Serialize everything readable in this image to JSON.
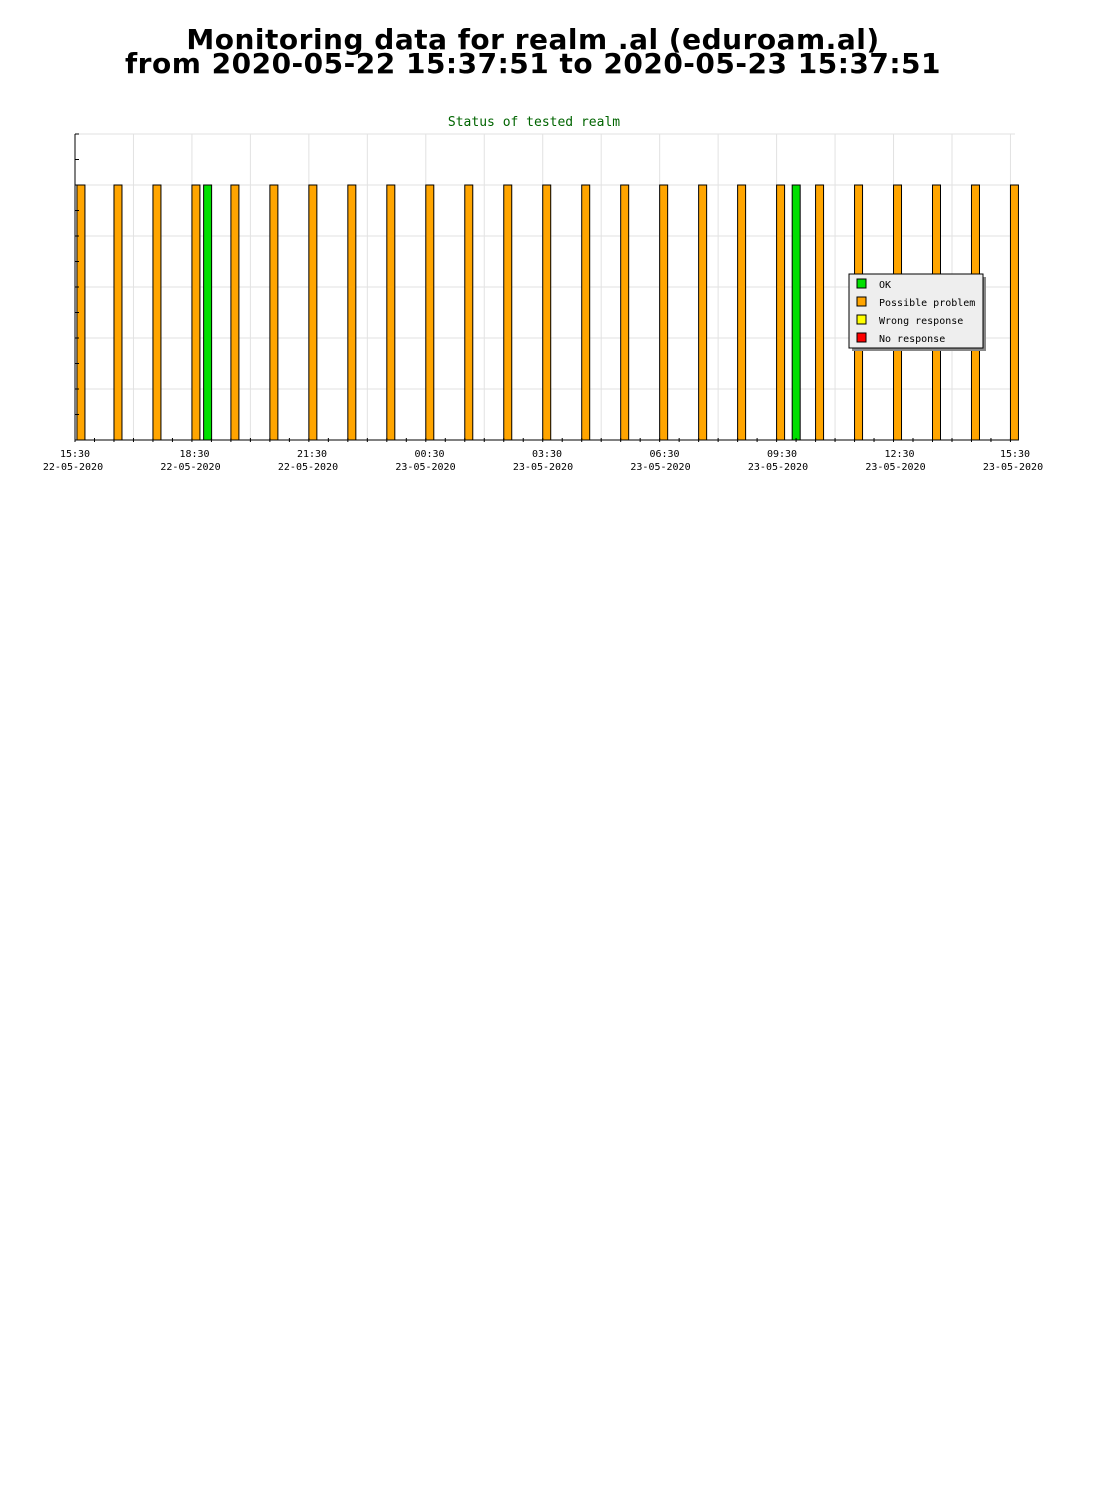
{
  "header": {
    "title_line1": "Monitoring data for realm .al  (eduroam.al)",
    "title_line2": "from 2020-05-22 15:37:51 to 2020-05-23 15:37:51"
  },
  "chart_data": {
    "type": "bar",
    "title": "Status of tested realm",
    "xlabel": "",
    "ylabel": "",
    "x_range": [
      "2020-05-22 15:30",
      "2020-05-23 15:37"
    ],
    "grid": true,
    "legend_position": "right",
    "ticks": [
      {
        "time": "15:30",
        "date": "22-05-2020"
      },
      {
        "time": "18:30",
        "date": "22-05-2020"
      },
      {
        "time": "21:30",
        "date": "22-05-2020"
      },
      {
        "time": "00:30",
        "date": "23-05-2020"
      },
      {
        "time": "03:30",
        "date": "23-05-2020"
      },
      {
        "time": "06:30",
        "date": "23-05-2020"
      },
      {
        "time": "09:30",
        "date": "23-05-2020"
      },
      {
        "time": "12:30",
        "date": "23-05-2020"
      },
      {
        "time": "15:30",
        "date": "23-05-2020"
      }
    ],
    "legend": [
      {
        "status": "ok",
        "label": "OK",
        "color": "#00e000"
      },
      {
        "status": "possible",
        "label": "Possible problem",
        "color": "#ffa500"
      },
      {
        "status": "wrong",
        "label": "Wrong response",
        "color": "#ffff00"
      },
      {
        "status": "none",
        "label": "No response",
        "color": "#ff0000"
      }
    ],
    "tests": [
      {
        "time": "2020-05-22 15:33",
        "status": "possible"
      },
      {
        "time": "2020-05-22 16:30",
        "status": "possible"
      },
      {
        "time": "2020-05-22 17:30",
        "status": "possible"
      },
      {
        "time": "2020-05-22 18:30",
        "status": "possible"
      },
      {
        "time": "2020-05-22 18:48",
        "status": "ok"
      },
      {
        "time": "2020-05-22 19:30",
        "status": "possible"
      },
      {
        "time": "2020-05-22 20:30",
        "status": "possible"
      },
      {
        "time": "2020-05-22 21:30",
        "status": "possible"
      },
      {
        "time": "2020-05-22 22:30",
        "status": "possible"
      },
      {
        "time": "2020-05-22 23:30",
        "status": "possible"
      },
      {
        "time": "2020-05-23 00:30",
        "status": "possible"
      },
      {
        "time": "2020-05-23 01:30",
        "status": "possible"
      },
      {
        "time": "2020-05-23 02:30",
        "status": "possible"
      },
      {
        "time": "2020-05-23 03:30",
        "status": "possible"
      },
      {
        "time": "2020-05-23 04:30",
        "status": "possible"
      },
      {
        "time": "2020-05-23 05:30",
        "status": "possible"
      },
      {
        "time": "2020-05-23 06:30",
        "status": "possible"
      },
      {
        "time": "2020-05-23 07:30",
        "status": "possible"
      },
      {
        "time": "2020-05-23 08:30",
        "status": "possible"
      },
      {
        "time": "2020-05-23 09:30",
        "status": "possible"
      },
      {
        "time": "2020-05-23 09:54",
        "status": "ok"
      },
      {
        "time": "2020-05-23 10:30",
        "status": "possible"
      },
      {
        "time": "2020-05-23 11:30",
        "status": "possible"
      },
      {
        "time": "2020-05-23 12:30",
        "status": "possible"
      },
      {
        "time": "2020-05-23 13:30",
        "status": "possible"
      },
      {
        "time": "2020-05-23 14:30",
        "status": "possible"
      },
      {
        "time": "2020-05-23 15:30",
        "status": "possible"
      }
    ]
  }
}
